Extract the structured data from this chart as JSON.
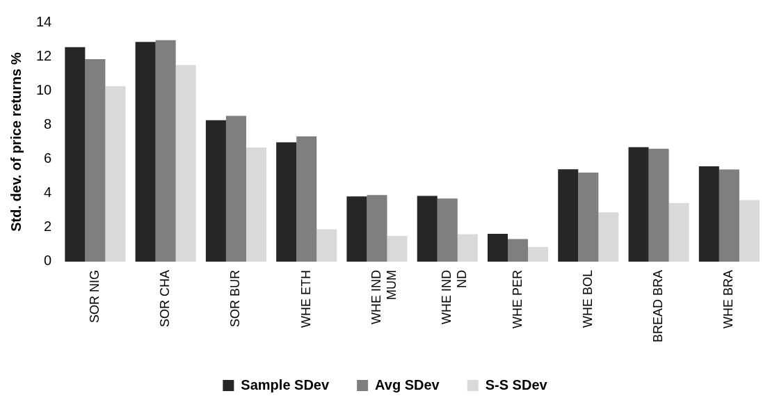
{
  "chart_data": {
    "type": "bar",
    "ylabel": "Std. dev. of price returns %",
    "categories": [
      "SOR NIG",
      "SOR CHA",
      "SOR BUR",
      "WHE ETH",
      "WHE IND MUM",
      "WHE IND ND",
      "WHE PER",
      "WHE BOL",
      "BREAD BRA",
      "WHE BRA"
    ],
    "series": [
      {
        "name": "Sample SDev",
        "color": "#262626",
        "values": [
          12.54,
          12.85,
          8.27,
          6.98,
          3.81,
          3.85,
          1.63,
          5.4,
          6.69,
          5.58
        ]
      },
      {
        "name": "Avg SDev",
        "color": "#7f7f7f",
        "values": [
          11.84,
          12.95,
          8.53,
          7.33,
          3.9,
          3.69,
          1.32,
          5.21,
          6.6,
          5.39
        ]
      },
      {
        "name": "S-S SDev",
        "color": "#d9d9d9",
        "values": [
          10.27,
          11.5,
          6.67,
          1.89,
          1.5,
          1.61,
          0.86,
          2.88,
          3.43,
          3.6
        ]
      }
    ],
    "ylim": [
      0,
      14
    ],
    "yticks": [
      0,
      2,
      4,
      6,
      8,
      10,
      12,
      14
    ],
    "grid": false,
    "legend": "bottom"
  }
}
